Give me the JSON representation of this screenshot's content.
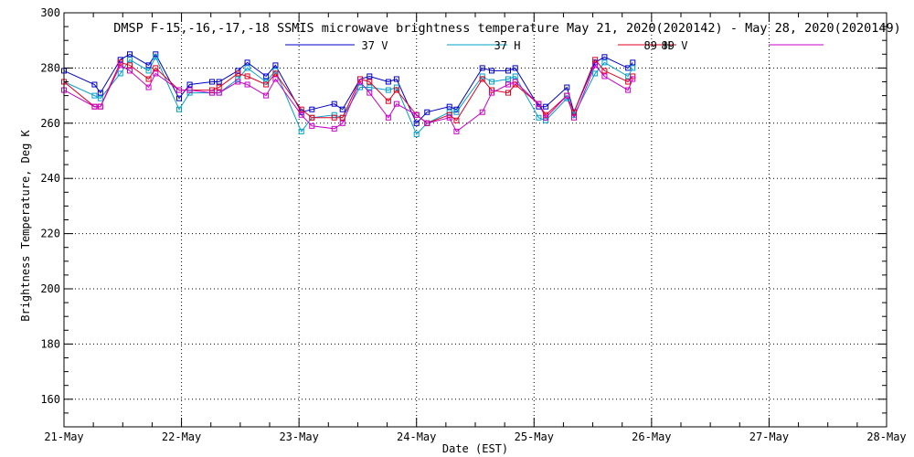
{
  "chart_data": {
    "type": "line",
    "title": "DMSP F-15,-16,-17,-18 SSMIS microwave brightness temperature May 21, 2020(2020142) - May 28, 2020(2020149)",
    "xlabel": "Date (EST)",
    "ylabel": "Brightness Temperature, Deg K",
    "xlim": [
      0,
      7
    ],
    "ylim": [
      150,
      300
    ],
    "grid": true,
    "legend_position": "top-center",
    "x_ticks": [
      {
        "value": 0,
        "label": "21-May"
      },
      {
        "value": 1,
        "label": "22-May"
      },
      {
        "value": 2,
        "label": "23-May"
      },
      {
        "value": 3,
        "label": "24-May"
      },
      {
        "value": 4,
        "label": "25-May"
      },
      {
        "value": 5,
        "label": "26-May"
      },
      {
        "value": 6,
        "label": "27-May"
      },
      {
        "value": 7,
        "label": "28-May"
      }
    ],
    "y_ticks": [
      {
        "value": 160,
        "label": "160"
      },
      {
        "value": 180,
        "label": "180"
      },
      {
        "value": 200,
        "label": "200"
      },
      {
        "value": 220,
        "label": "220"
      },
      {
        "value": 240,
        "label": "240"
      },
      {
        "value": 260,
        "label": "260"
      },
      {
        "value": 280,
        "label": "280"
      },
      {
        "value": 300,
        "label": "300"
      }
    ],
    "x": [
      0.0,
      0.26,
      0.31,
      0.48,
      0.56,
      0.72,
      0.78,
      0.98,
      1.07,
      1.26,
      1.32,
      1.48,
      1.56,
      1.72,
      1.8,
      2.02,
      2.11,
      2.3,
      2.37,
      2.52,
      2.6,
      2.76,
      2.83,
      3.0,
      3.09,
      3.28,
      3.34,
      3.56,
      3.64,
      3.78,
      3.84,
      4.04,
      4.1,
      4.28,
      4.34,
      4.52,
      4.6,
      4.8,
      4.84
    ],
    "series": [
      {
        "name": "37 V",
        "color": "#0000c8",
        "values": [
          279,
          274,
          271,
          283,
          285,
          281,
          285,
          269,
          274,
          275,
          275,
          279,
          282,
          277,
          281,
          264,
          265,
          267,
          265,
          276,
          277,
          275,
          276,
          260,
          264,
          266,
          265,
          280,
          279,
          279,
          280,
          266,
          266,
          273,
          264,
          282,
          284,
          280,
          282
        ]
      },
      {
        "name": "37 H",
        "color": "#00a0c8",
        "values": [
          275,
          270,
          269,
          278,
          283,
          279,
          284,
          265,
          271,
          271,
          271,
          276,
          280,
          275,
          279,
          257,
          262,
          263,
          262,
          273,
          273,
          272,
          273,
          256,
          260,
          264,
          264,
          277,
          275,
          276,
          277,
          262,
          261,
          269,
          263,
          278,
          282,
          277,
          280
        ]
      },
      {
        "name": "89 V",
        "color": "#e00020",
        "values": [
          275,
          266,
          266,
          282,
          281,
          276,
          280,
          272,
          272,
          272,
          273,
          278,
          277,
          274,
          278,
          265,
          262,
          262,
          262,
          276,
          275,
          268,
          272,
          263,
          260,
          263,
          261,
          276,
          272,
          271,
          274,
          267,
          263,
          270,
          264,
          283,
          279,
          275,
          277
        ]
      },
      {
        "name": "89 H",
        "color": "#c800c8",
        "values": [
          272,
          266,
          266,
          281,
          279,
          273,
          278,
          272,
          272,
          271,
          271,
          275,
          274,
          270,
          276,
          263,
          259,
          258,
          260,
          275,
          271,
          262,
          267,
          263,
          260,
          262,
          257,
          264,
          271,
          274,
          275,
          267,
          262,
          270,
          262,
          281,
          277,
          272,
          276
        ]
      }
    ]
  }
}
